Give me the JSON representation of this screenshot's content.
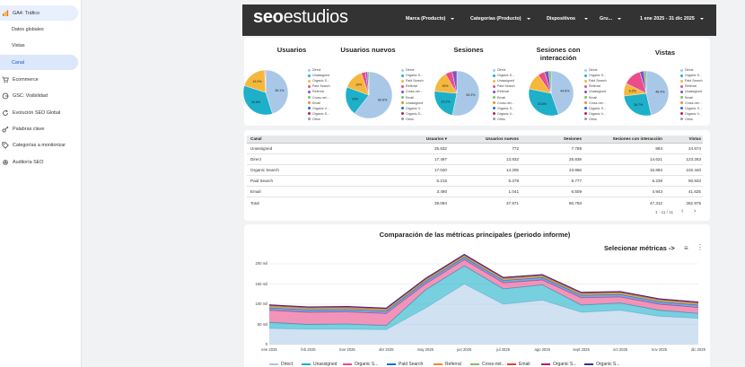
{
  "sidebar": {
    "items": [
      {
        "label": "GA4: Tráfico",
        "icon": "analytics-icon"
      },
      {
        "label": "Datos globales"
      },
      {
        "label": "Vistas"
      },
      {
        "label": "Canal"
      },
      {
        "label": "Ecommerce",
        "icon": "cart-icon"
      },
      {
        "label": "GSC: Visibilidad",
        "icon": "google-icon"
      },
      {
        "label": "Evolución SEO Global",
        "icon": "refresh-icon"
      },
      {
        "label": "Palabras clave",
        "icon": "key-icon"
      },
      {
        "label": "Categorías a monitorizar",
        "icon": "tag-icon"
      },
      {
        "label": "Auditoría SEO",
        "icon": "gear-icon"
      }
    ]
  },
  "header": {
    "logo_a": "seo",
    "logo_b": "estudios",
    "filters": [
      "Marca (Producto)",
      "Categorías (Producto)",
      "Dispositivos",
      "Gru..."
    ],
    "date_range": "1 ene 2025 - 31 dic 2025"
  },
  "pies": [
    {
      "title": "Usuarios",
      "legend": [
        "Direct",
        "Unassigned",
        "Organic S...",
        "Paid Search",
        "Referral",
        "Cross-net...",
        "Email",
        "Organic V...",
        "Organic S...",
        "Otros"
      ],
      "slices": [
        45.1,
        34.8,
        19.3,
        0.5,
        0.3
      ],
      "labels": [
        "45.1%",
        "34.8%",
        "19.3%"
      ]
    },
    {
      "title": "Usuarios nuevos",
      "legend": [
        "Direct",
        "Organic S...",
        "Paid Search",
        "Referral",
        "Cross-net...",
        "Email",
        "Unassigned",
        "Organic V...",
        "Organic S...",
        "Otros"
      ],
      "slices": [
        60.6,
        20,
        14,
        3,
        1.5,
        0.9
      ],
      "labels": [
        "60.6%",
        "20%",
        "14%"
      ]
    },
    {
      "title": "Sesiones",
      "legend": [
        "Direct",
        "Organic S...",
        "Unassigned",
        "Paid Search",
        "Referral",
        "Email",
        "Cross-net...",
        "Organic S...",
        "Organic V...",
        "Otros"
      ],
      "slices": [
        53.3,
        23.2,
        15,
        5,
        3.5
      ],
      "labels": [
        "53.3%",
        "23.2%",
        "15%"
      ]
    },
    {
      "title": "Sesiones con interacción",
      "legend": [
        "Direct",
        "Organic S...",
        "Paid Search",
        "Referral",
        "Unassigned",
        "Email",
        "Cross-net...",
        "Organic S...",
        "Organic V...",
        "Otros"
      ],
      "slices": [
        44.6,
        33.6,
        12,
        5,
        3,
        1.8
      ],
      "labels": [
        "44.6%",
        "33.6%",
        ""
      ]
    },
    {
      "title": "Vistas",
      "legend": [
        "Direct",
        "Organic S...",
        "Paid Search",
        "Referral",
        "Unassigned",
        "Email",
        "Cross-net...",
        "Organic S...",
        "Organic V...",
        "Otros"
      ],
      "slices": [
        46.4,
        26.7,
        9.2,
        13,
        3,
        1.7
      ],
      "labels": [
        "46.4%",
        "26.7%",
        "9.2%"
      ]
    }
  ],
  "pie_colors": [
    "#a9c8e8",
    "#1eb0c8",
    "#f5b83d",
    "#ea4d8a",
    "#7e54c4",
    "#7cc06a",
    "#f08a2f",
    "#1c6fd0",
    "#b61b6a",
    "#9c9c9c"
  ],
  "table": {
    "headers": [
      "Canal",
      "Usuarios ▾",
      "Usuarios nuevos",
      "Sesiones",
      "Sesiones con interacción",
      "Vistas"
    ],
    "rows": [
      [
        "Unassigned",
        "25.632",
        "772",
        "7.788",
        "884",
        "24.674"
      ],
      [
        "Direct",
        "17.497",
        "13.832",
        "25.838",
        "14.621",
        "123.283"
      ],
      [
        "Organic Search",
        "17.020",
        "14.205",
        "23.866",
        "15.894",
        "102.440"
      ],
      [
        "Paid Search",
        "5.215",
        "5.278",
        "8.777",
        "6.238",
        "50.833"
      ],
      [
        "Email",
        "3.490",
        "1.041",
        "6.509",
        "4.943",
        "41.625"
      ]
    ],
    "total": [
      "Total",
      "39.084",
      "37.971",
      "80.793",
      "47.312",
      "382.975"
    ],
    "pager": "1 - 11 / 11"
  },
  "chart": {
    "title": "Comparación de las métricas principales (periodo informe)",
    "select_label": "Selecionar métricas ->",
    "yticks": [
      "200 mil",
      "150 mil",
      "100 mil",
      "50 mil",
      "0"
    ],
    "xticks": [
      "ene 2025",
      "feb 2025",
      "mar 2025",
      "abr 2025",
      "may 2025",
      "jun 2025",
      "jul 2025",
      "ago 2025",
      "sept 2025",
      "oct 2025",
      "nov 2025",
      "dic 2025"
    ],
    "legend": [
      "Direct",
      "Unassigned",
      "Organic S...",
      "Paid Search",
      "Referral",
      "Cross-net...",
      "Email",
      "Organic S...",
      "Organic S..."
    ]
  },
  "chart_data": {
    "type": "area",
    "x": [
      "ene 2025",
      "feb 2025",
      "mar 2025",
      "abr 2025",
      "may 2025",
      "jun 2025",
      "jul 2025",
      "ago 2025",
      "sept 2025",
      "oct 2025",
      "nov 2025",
      "dic 2025"
    ],
    "ylim": [
      0,
      200000
    ],
    "series": [
      {
        "name": "Direct",
        "color": "#a9c8e8",
        "values": [
          40000,
          38000,
          38000,
          37000,
          90000,
          150000,
          100000,
          110000,
          80000,
          85000,
          70000,
          65000
        ]
      },
      {
        "name": "Unassigned",
        "color": "#1eb0c8",
        "values": [
          15000,
          12000,
          13000,
          10000,
          45000,
          45000,
          38000,
          38000,
          18000,
          18000,
          15000,
          12000
        ]
      },
      {
        "name": "Organic S...",
        "color": "#ea4d8a",
        "values": [
          30000,
          30000,
          30000,
          30000,
          15000,
          15000,
          15000,
          12000,
          18000,
          15000,
          15000,
          15000
        ]
      },
      {
        "name": "Paid Search",
        "color": "#1c6fd0",
        "values": [
          6000,
          6000,
          6000,
          6000,
          6000,
          6000,
          6000,
          6000,
          6000,
          6000,
          6000,
          6000
        ]
      },
      {
        "name": "Referral",
        "color": "#f08a2f",
        "values": [
          3000,
          3000,
          3000,
          3000,
          3000,
          3000,
          3000,
          3000,
          3000,
          3000,
          3000,
          3000
        ]
      },
      {
        "name": "Cross-net...",
        "color": "#7cc06a",
        "values": [
          1000,
          1000,
          1000,
          1000,
          1000,
          1000,
          1000,
          1000,
          1000,
          1000,
          1000,
          1000
        ]
      },
      {
        "name": "Email",
        "color": "#d84b2b",
        "values": [
          2000,
          2000,
          2000,
          2000,
          2000,
          2000,
          2000,
          2000,
          2000,
          2000,
          2000,
          2000
        ]
      },
      {
        "name": "Organic S...",
        "color": "#b61b6a",
        "values": [
          1000,
          1000,
          1000,
          1000,
          1000,
          1000,
          1000,
          1000,
          1000,
          1000,
          1000,
          1000
        ]
      },
      {
        "name": "Organic S...",
        "color": "#3a2d8f",
        "values": [
          500,
          500,
          500,
          500,
          500,
          500,
          500,
          500,
          500,
          500,
          500,
          500
        ]
      }
    ]
  }
}
